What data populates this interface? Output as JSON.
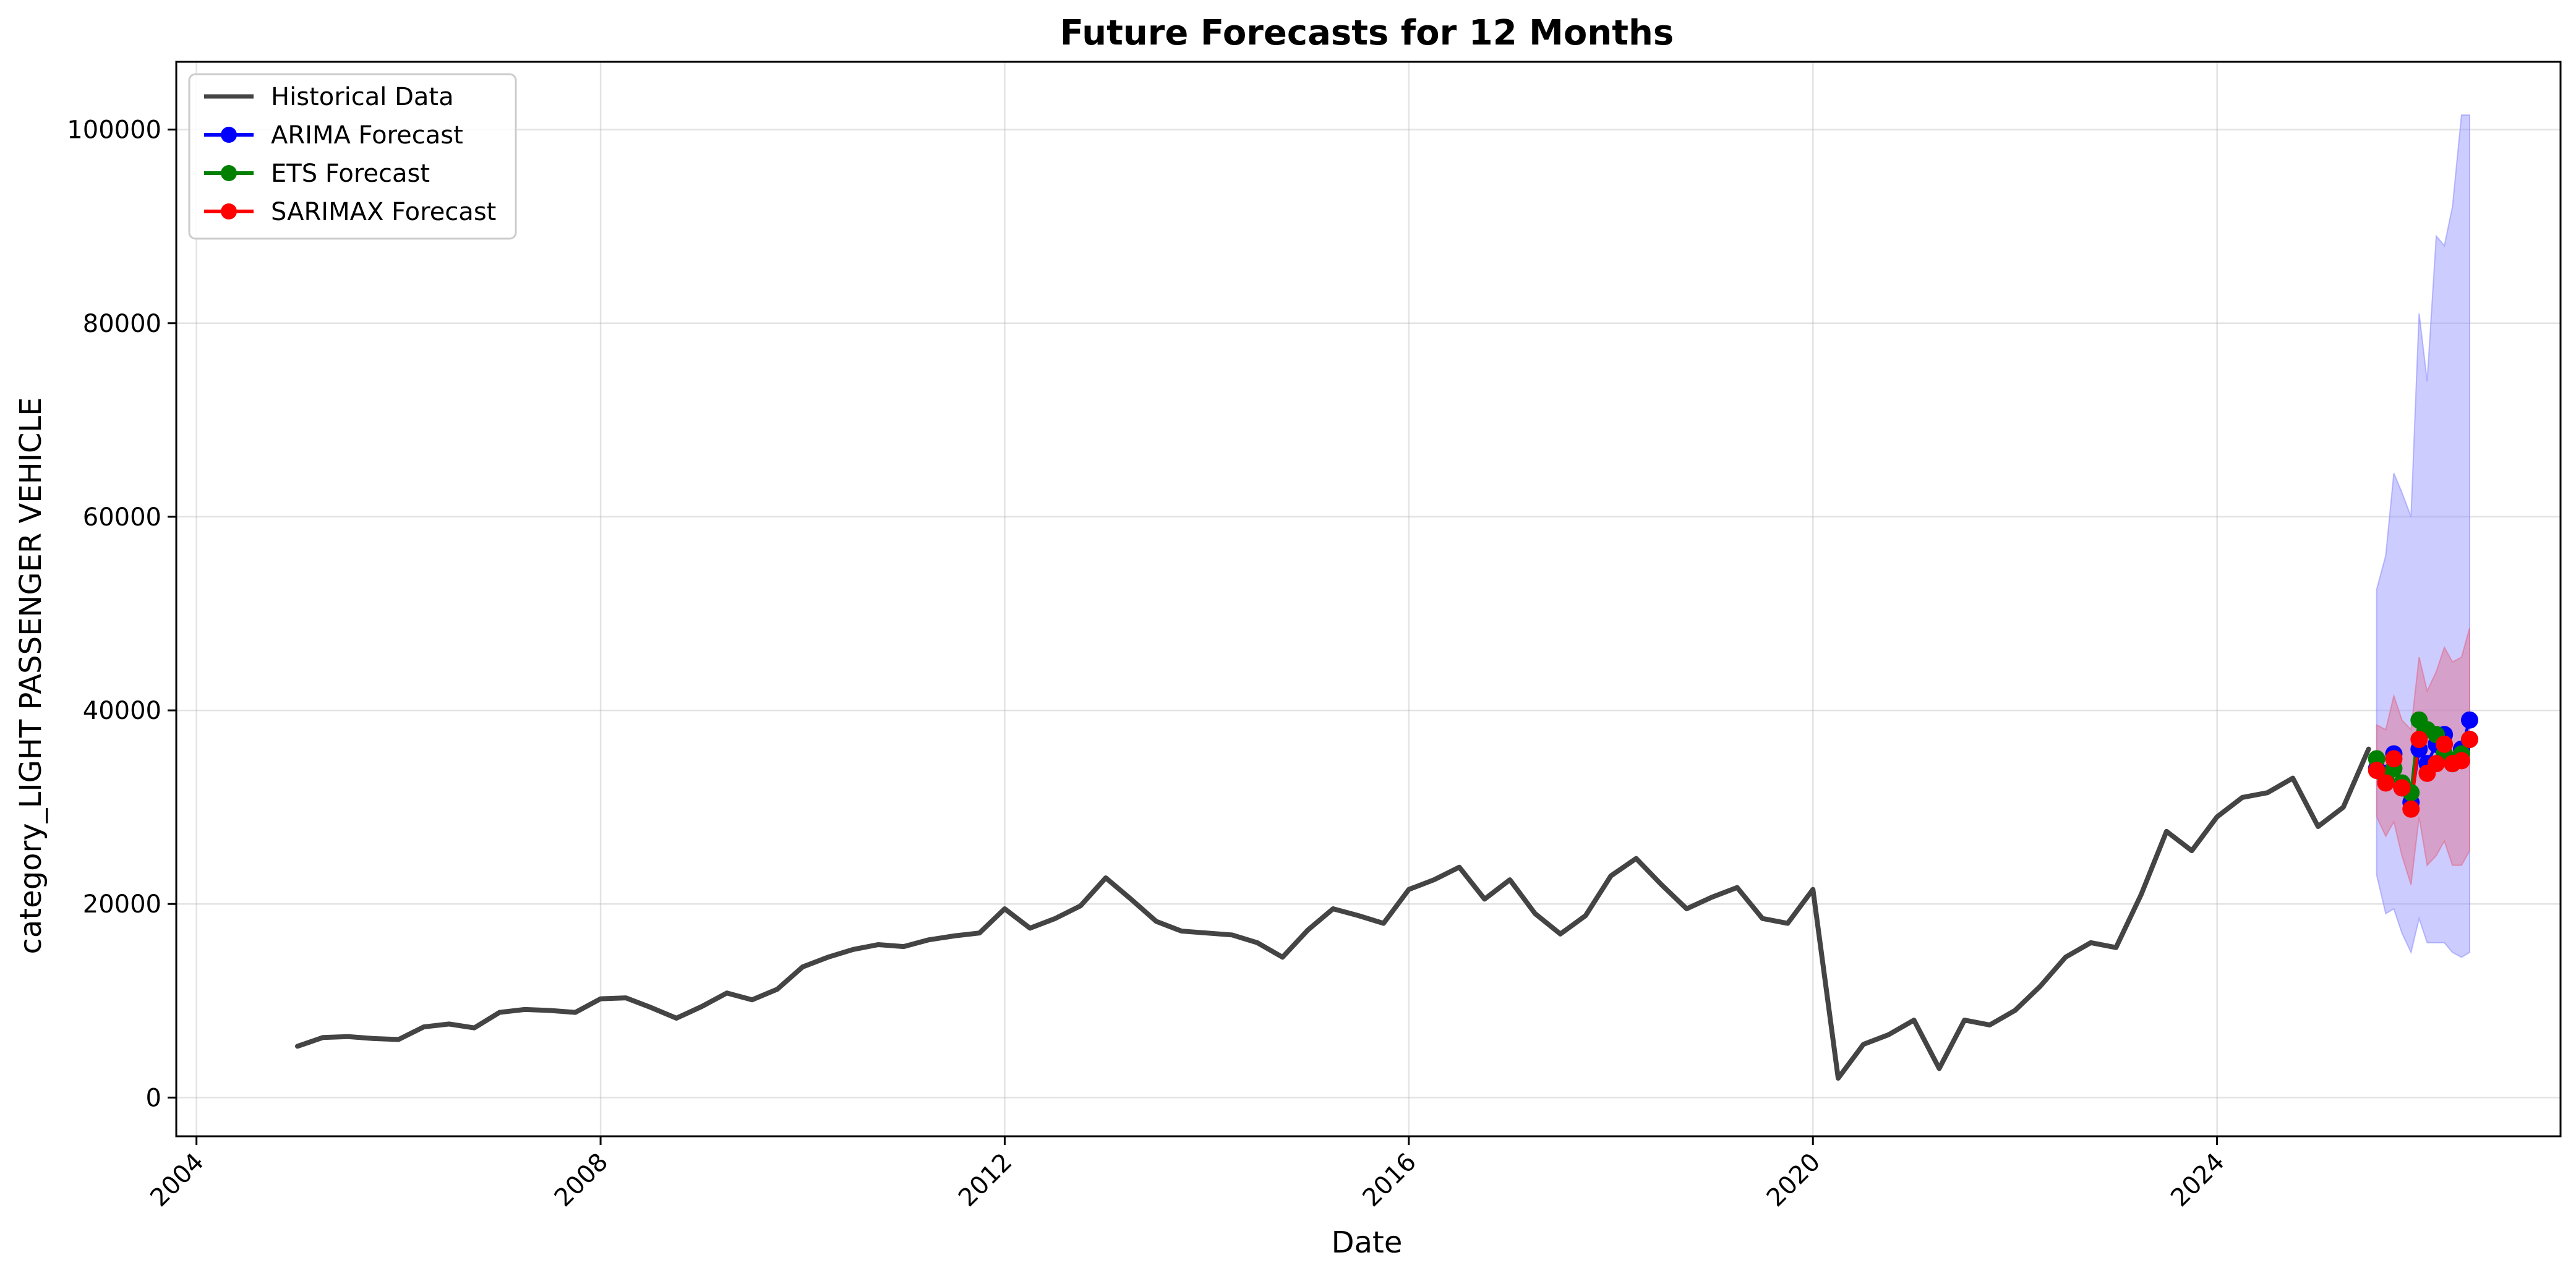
{
  "chart_data": {
    "type": "line",
    "title": "Future Forecasts for 12 Months",
    "xlabel": "Date",
    "ylabel": "category_LIGHT PASSENGER VEHICLE",
    "xlim": [
      2003.8,
      2027.4
    ],
    "ylim": [
      -4000,
      107000
    ],
    "grid": true,
    "legend_position": "top-left",
    "x_ticks": [
      2004,
      2008,
      2012,
      2016,
      2020,
      2024
    ],
    "x_tick_labels": [
      "2004",
      "2008",
      "2012",
      "2016",
      "2020",
      "2024"
    ],
    "y_ticks": [
      0,
      20000,
      40000,
      60000,
      80000,
      100000
    ],
    "y_tick_labels": [
      "0",
      "20000",
      "40000",
      "60000",
      "80000",
      "100000"
    ],
    "legend": [
      "Historical Data",
      "ARIMA Forecast",
      "ETS Forecast",
      "SARIMAX Forecast"
    ],
    "colors": {
      "historical": "#444444",
      "arima": "#0000ff",
      "ets": "#008000",
      "sarimax": "#ff0000",
      "arima_band": "#8f8fff",
      "sarimax_band": "#e06b8a"
    },
    "historical": {
      "name": "Historical Data",
      "x": [
        2005.0,
        2005.25,
        2005.5,
        2005.75,
        2006.0,
        2006.25,
        2006.5,
        2006.75,
        2007.0,
        2007.25,
        2007.5,
        2007.75,
        2008.0,
        2008.25,
        2008.5,
        2008.75,
        2009.0,
        2009.25,
        2009.5,
        2009.75,
        2010.0,
        2010.25,
        2010.5,
        2010.75,
        2011.0,
        2011.25,
        2011.5,
        2011.75,
        2012.0,
        2012.25,
        2012.5,
        2012.75,
        2013.0,
        2013.25,
        2013.5,
        2013.75,
        2014.0,
        2014.25,
        2014.5,
        2014.75,
        2015.0,
        2015.25,
        2015.5,
        2015.75,
        2016.0,
        2016.25,
        2016.5,
        2016.75,
        2017.0,
        2017.25,
        2017.5,
        2017.75,
        2018.0,
        2018.25,
        2018.5,
        2018.75,
        2019.0,
        2019.25,
        2019.5,
        2019.75,
        2020.0,
        2020.25,
        2020.5,
        2020.75,
        2021.0,
        2021.25,
        2021.5,
        2021.75,
        2022.0,
        2022.25,
        2022.5,
        2022.75,
        2023.0,
        2023.25,
        2023.5,
        2023.75,
        2024.0,
        2024.25,
        2024.5,
        2024.75,
        2025.0,
        2025.25,
        2025.5
      ],
      "values": [
        5300,
        6200,
        6300,
        6100,
        6000,
        7300,
        7600,
        7200,
        8800,
        9100,
        9000,
        8800,
        10200,
        10300,
        9300,
        8200,
        9400,
        10800,
        10100,
        11200,
        13500,
        14500,
        15300,
        15800,
        15600,
        16300,
        16700,
        17000,
        19500,
        17500,
        18500,
        19800,
        22700,
        20500,
        18200,
        17200,
        17000,
        16800,
        16000,
        14500,
        17300,
        19500,
        18800,
        18000,
        21500,
        22500,
        23800,
        20500,
        22500,
        19000,
        16900,
        18800,
        22900,
        24700,
        22000,
        19500,
        20700,
        21700,
        18500,
        18000,
        21500,
        2000,
        5500,
        6500,
        8000,
        3000,
        8000,
        7500,
        9000,
        11500,
        14500,
        16000,
        15500,
        21000,
        27500,
        25500,
        29000,
        31000,
        31500,
        33000,
        28000,
        30000,
        36000
      ]
    },
    "arima": {
      "name": "ARIMA Forecast",
      "x": [
        2025.58,
        2025.67,
        2025.75,
        2025.83,
        2025.92,
        2026.0,
        2026.08,
        2026.17,
        2026.25,
        2026.33,
        2026.42,
        2026.5
      ],
      "values": [
        34000,
        33500,
        35500,
        32000,
        30500,
        36000,
        34500,
        36500,
        37500,
        34500,
        36000,
        39000
      ],
      "lower": [
        23000,
        19000,
        19500,
        17000,
        15000,
        18500,
        16000,
        16000,
        16000,
        15000,
        14500,
        15000
      ],
      "upper": [
        52500,
        56000,
        64500,
        62500,
        60000,
        81000,
        74000,
        89000,
        88000,
        92000,
        101500,
        101500
      ]
    },
    "ets": {
      "name": "ETS Forecast",
      "x": [
        2025.58,
        2025.67,
        2025.75,
        2025.83,
        2025.92,
        2026.0,
        2026.08,
        2026.17,
        2026.25,
        2026.33,
        2026.42,
        2026.5
      ],
      "values": [
        35000,
        33000,
        34000,
        32500,
        31500,
        39000,
        38000,
        37500,
        35500,
        34500,
        35500,
        37000
      ]
    },
    "sarimax": {
      "name": "SARIMAX Forecast",
      "x": [
        2025.58,
        2025.67,
        2025.75,
        2025.83,
        2025.92,
        2026.0,
        2026.08,
        2026.17,
        2026.25,
        2026.33,
        2026.42,
        2026.5
      ],
      "values": [
        33800,
        32500,
        35000,
        32000,
        29800,
        37000,
        33500,
        34500,
        36500,
        34500,
        34800,
        37000
      ],
      "lower": [
        29000,
        27000,
        28500,
        25000,
        22000,
        29000,
        24000,
        25000,
        26500,
        24000,
        24000,
        25500
      ],
      "upper": [
        38500,
        38000,
        41500,
        39000,
        38000,
        45500,
        42000,
        44000,
        46500,
        45000,
        45500,
        48500
      ]
    }
  }
}
